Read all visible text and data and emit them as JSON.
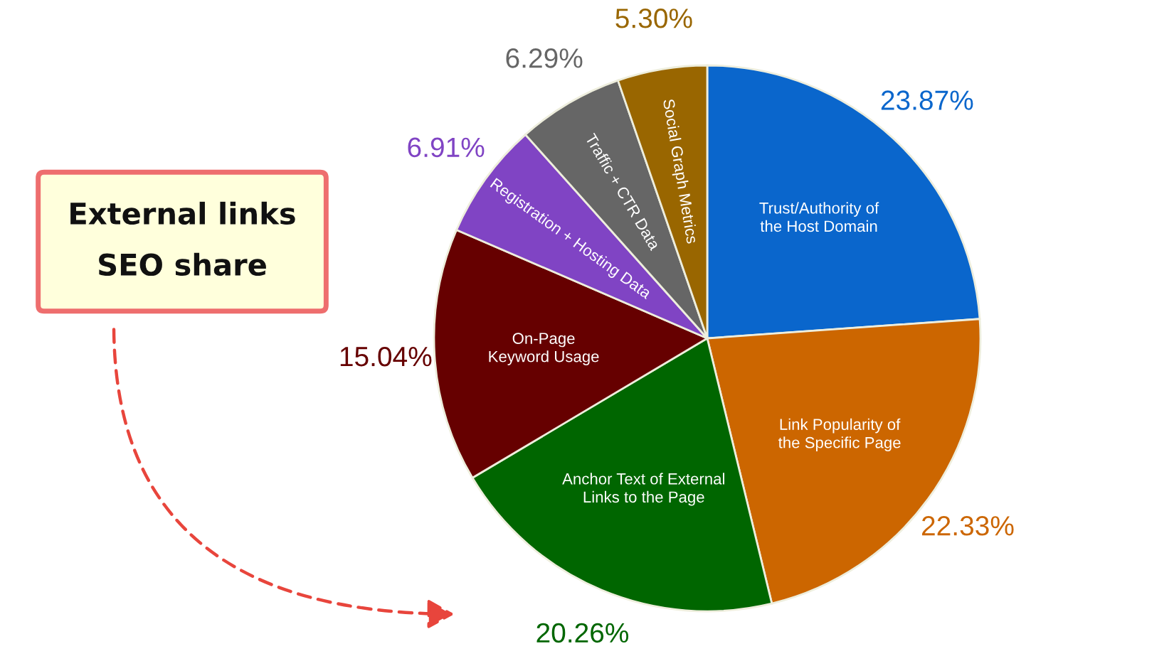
{
  "chart_data": {
    "type": "pie",
    "categories": [
      "Trust/Authority of\nthe Host Domain",
      "Link Popularity of\nthe Specific Page",
      "Anchor Text of External\nLinks to the Page",
      "On-Page\nKeyword Usage",
      "Registration + Hosting Data",
      "Traffic + CTR Data",
      "Social Graph Metrics"
    ],
    "values": [
      23.87,
      22.33,
      20.26,
      15.04,
      6.91,
      6.29,
      5.3
    ],
    "value_labels": [
      "23.87%",
      "22.33%",
      "20.26%",
      "15.04%",
      "6.91%",
      "6.29%",
      "5.30%"
    ],
    "colors": [
      "#0a66cc",
      "#cc6600",
      "#006600",
      "#660000",
      "#8044c4",
      "#666666",
      "#996600"
    ],
    "annotations": [
      "External links\nSEO share"
    ]
  }
}
